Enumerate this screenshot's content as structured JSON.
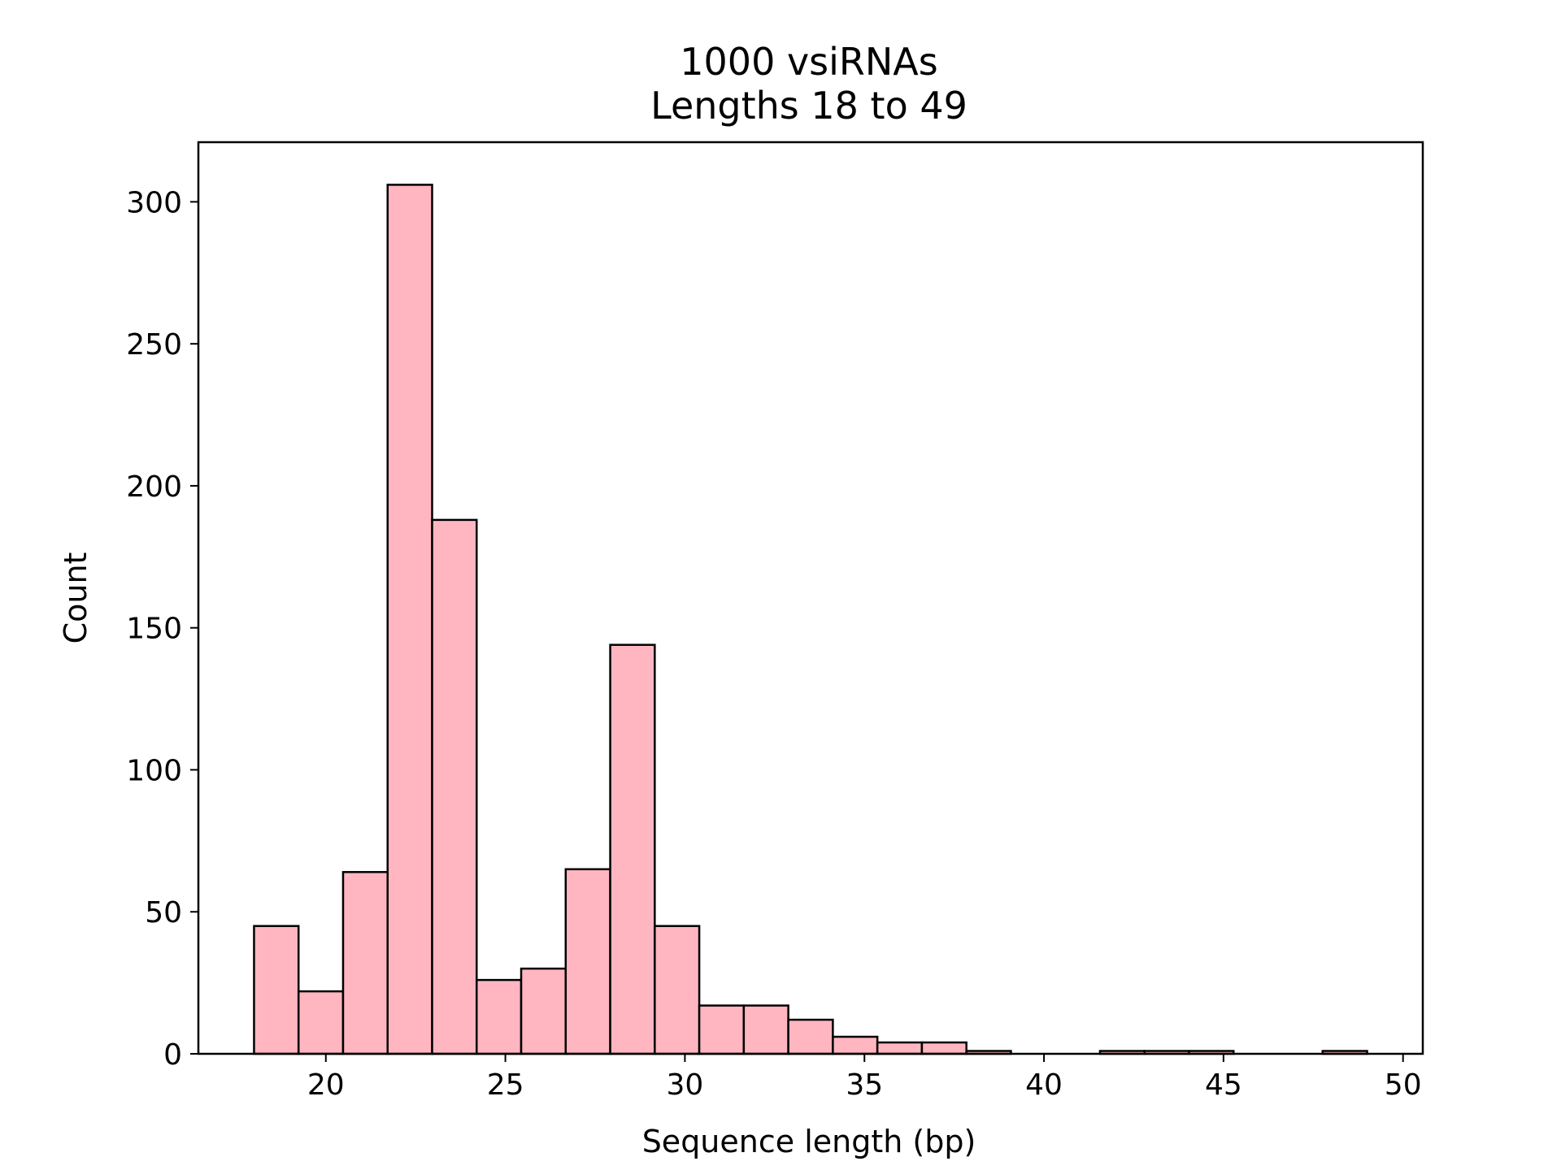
{
  "chart_data": {
    "type": "bar",
    "title": "1000 vsiRNAs",
    "subtitle": "Lengths 18 to 49",
    "xlabel": "Sequence length (bp)",
    "ylabel": "Count",
    "xlim": [
      16.45,
      50.55
    ],
    "ylim": [
      0,
      321
    ],
    "xticks": [
      20,
      25,
      30,
      35,
      40,
      45,
      50
    ],
    "yticks": [
      0,
      50,
      100,
      150,
      200,
      250,
      300
    ],
    "bins": {
      "start": 18,
      "end": 49,
      "count": 25
    },
    "values": [
      45,
      22,
      64,
      306,
      188,
      26,
      30,
      65,
      144,
      45,
      17,
      17,
      12,
      6,
      4,
      4,
      1,
      0,
      0,
      1,
      1,
      1,
      0,
      0,
      1
    ],
    "bar_color": "#ffb6c1",
    "edge_color": "#000000",
    "grid": false,
    "legend": false
  }
}
